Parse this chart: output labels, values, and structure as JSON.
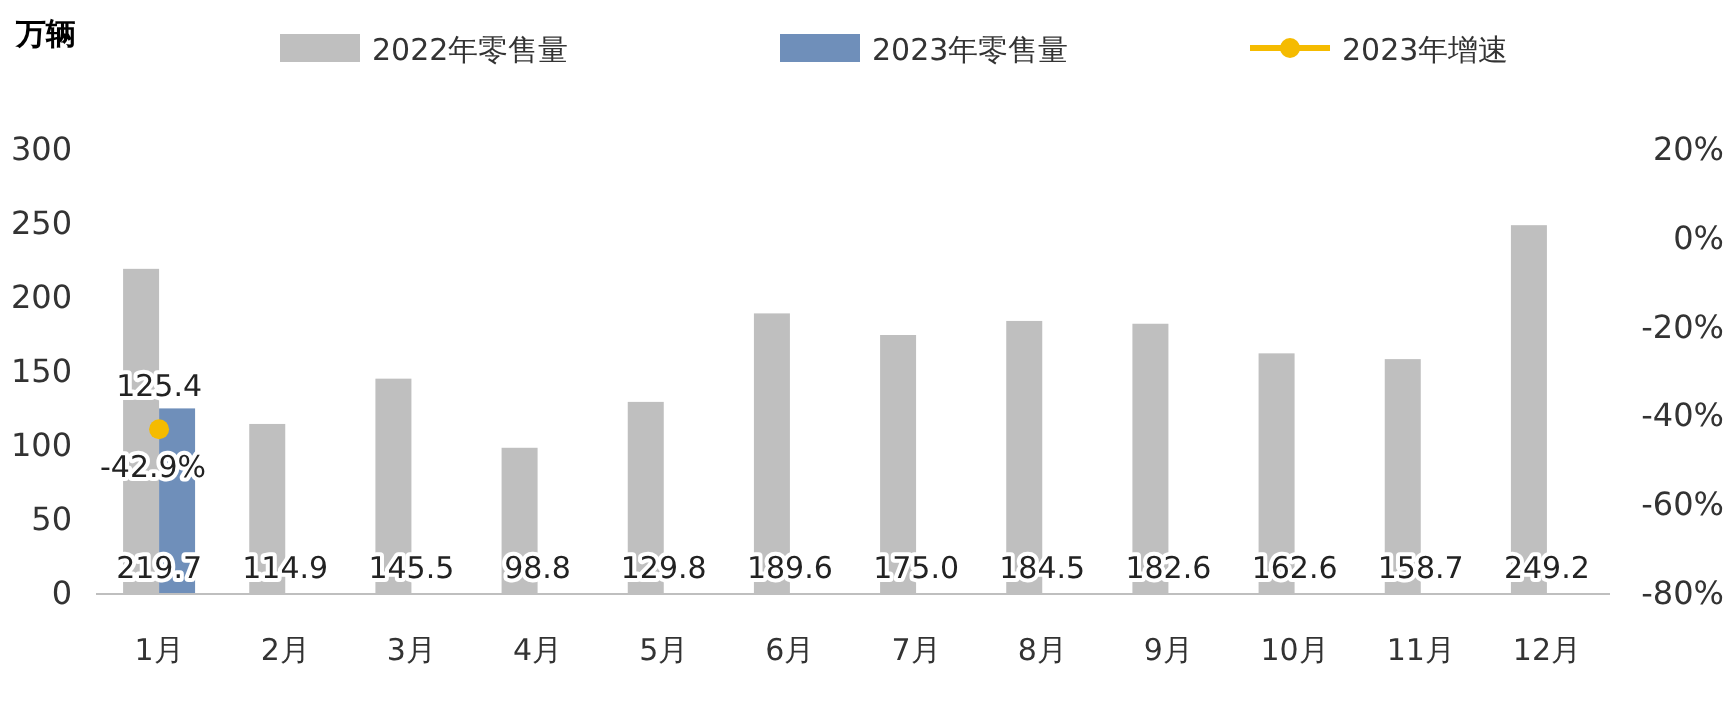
{
  "chart_data": {
    "type": "bar",
    "ylabel": "万辆",
    "legend": "top",
    "categories": [
      "1月",
      "2月",
      "3月",
      "4月",
      "5月",
      "6月",
      "7月",
      "8月",
      "9月",
      "10月",
      "11月",
      "12月"
    ],
    "series": [
      {
        "name": "2022年零售量",
        "color": "#bfbfbf",
        "values": [
          219.7,
          114.9,
          145.5,
          98.8,
          129.8,
          189.6,
          175.0,
          184.5,
          182.6,
          162.6,
          158.7,
          249.2
        ],
        "value_labels": [
          "219.7",
          "114.9",
          "145.5",
          "98.8",
          "129.8",
          "189.6",
          "175.0",
          "184.5",
          "182.6",
          "162.6",
          "158.7",
          "249.2"
        ]
      },
      {
        "name": "2023年零售量",
        "color": "#6f8fba",
        "values": [
          125.4,
          null,
          null,
          null,
          null,
          null,
          null,
          null,
          null,
          null,
          null,
          null
        ],
        "value_labels": [
          "125.4",
          null,
          null,
          null,
          null,
          null,
          null,
          null,
          null,
          null,
          null,
          null
        ]
      },
      {
        "name": "2023年增速",
        "type": "line",
        "axis": "y2",
        "marker": "circle",
        "color": "#f5bb00",
        "values": [
          -42.9,
          null,
          null,
          null,
          null,
          null,
          null,
          null,
          null,
          null,
          null,
          null
        ],
        "value_labels": [
          "-42.9%",
          null,
          null,
          null,
          null,
          null,
          null,
          null,
          null,
          null,
          null,
          null
        ]
      }
    ],
    "ylim": [
      0,
      300
    ],
    "yticks": [
      0,
      50,
      100,
      150,
      200,
      250,
      300
    ],
    "y2lim": [
      -80,
      20
    ],
    "y2ticks": [
      {
        "value": -80,
        "label": "-80%"
      },
      {
        "value": -60,
        "label": "-60%"
      },
      {
        "value": -40,
        "label": "-40%"
      },
      {
        "value": -20,
        "label": "-20%"
      },
      {
        "value": 0,
        "label": "0%"
      },
      {
        "value": 20,
        "label": "20%"
      }
    ]
  }
}
